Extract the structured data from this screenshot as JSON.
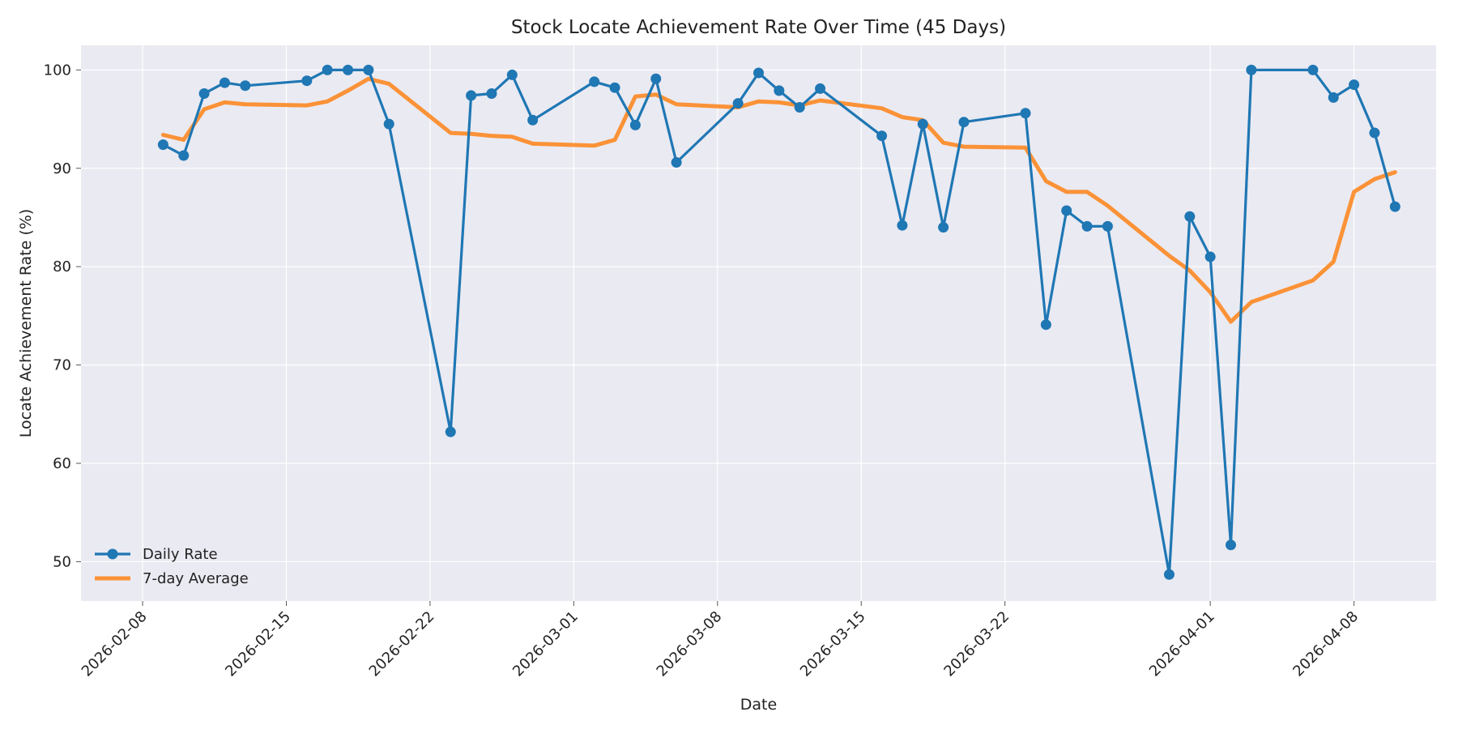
{
  "chart_data": {
    "type": "line",
    "title": "Stock Locate Achievement Rate Over Time (45 Days)",
    "xlabel": "Date",
    "ylabel": "Locate Achievement Rate (%)",
    "xlim": [
      "2026-02-05",
      "2026-04-12"
    ],
    "ylim": [
      46,
      102.5
    ],
    "x_ticks": [
      "2026-02-08",
      "2026-02-15",
      "2026-02-22",
      "2026-03-01",
      "2026-03-08",
      "2026-03-15",
      "2026-03-22",
      "2026-04-01",
      "2026-04-08"
    ],
    "y_ticks": [
      50,
      60,
      70,
      80,
      90,
      100
    ],
    "grid": true,
    "legend": "lower-left",
    "series": [
      {
        "name": "Daily Rate",
        "color": "#1f77b4",
        "marker": "circle",
        "x": [
          "2026-02-09",
          "2026-02-10",
          "2026-02-11",
          "2026-02-12",
          "2026-02-13",
          "2026-02-16",
          "2026-02-17",
          "2026-02-18",
          "2026-02-19",
          "2026-02-20",
          "2026-02-23",
          "2026-02-24",
          "2026-02-25",
          "2026-02-26",
          "2026-02-27",
          "2026-03-02",
          "2026-03-03",
          "2026-03-04",
          "2026-03-05",
          "2026-03-06",
          "2026-03-09",
          "2026-03-10",
          "2026-03-11",
          "2026-03-12",
          "2026-03-13",
          "2026-03-16",
          "2026-03-17",
          "2026-03-18",
          "2026-03-19",
          "2026-03-20",
          "2026-03-23",
          "2026-03-24",
          "2026-03-25",
          "2026-03-26",
          "2026-03-27",
          "2026-03-30",
          "2026-03-31",
          "2026-04-01",
          "2026-04-02",
          "2026-04-03",
          "2026-04-06",
          "2026-04-07",
          "2026-04-08",
          "2026-04-09",
          "2026-04-10"
        ],
        "values": [
          92.4,
          91.3,
          97.6,
          98.7,
          98.4,
          98.9,
          100,
          100,
          100,
          94.5,
          63.2,
          97.4,
          97.6,
          99.5,
          94.9,
          98.8,
          98.2,
          94.4,
          99.1,
          90.6,
          96.6,
          99.7,
          97.9,
          96.2,
          98.1,
          93.3,
          84.2,
          94.5,
          84.0,
          94.7,
          95.6,
          74.1,
          85.7,
          84.1,
          84.1,
          48.7,
          85.1,
          81.0,
          51.7,
          100,
          100,
          97.2,
          98.5,
          93.6,
          86.1
        ]
      },
      {
        "name": "7-day Average",
        "color": "#ff7f0e",
        "marker": "none",
        "x": [
          "2026-02-09",
          "2026-02-10",
          "2026-02-11",
          "2026-02-12",
          "2026-02-13",
          "2026-02-16",
          "2026-02-17",
          "2026-02-18",
          "2026-02-19",
          "2026-02-20",
          "2026-02-23",
          "2026-02-24",
          "2026-02-25",
          "2026-02-26",
          "2026-02-27",
          "2026-03-02",
          "2026-03-03",
          "2026-03-04",
          "2026-03-05",
          "2026-03-06",
          "2026-03-09",
          "2026-03-10",
          "2026-03-11",
          "2026-03-12",
          "2026-03-13",
          "2026-03-16",
          "2026-03-17",
          "2026-03-18",
          "2026-03-19",
          "2026-03-20",
          "2026-03-23",
          "2026-03-24",
          "2026-03-25",
          "2026-03-26",
          "2026-03-27",
          "2026-03-30",
          "2026-03-31",
          "2026-04-01",
          "2026-04-02",
          "2026-04-03",
          "2026-04-06",
          "2026-04-07",
          "2026-04-08",
          "2026-04-09",
          "2026-04-10"
        ],
        "values": [
          93.4,
          92.9,
          96.0,
          96.7,
          96.5,
          96.4,
          96.8,
          97.9,
          99.1,
          98.6,
          93.6,
          93.5,
          93.3,
          93.2,
          92.5,
          92.3,
          92.9,
          97.3,
          97.5,
          96.5,
          96.2,
          96.8,
          96.7,
          96.4,
          96.9,
          96.1,
          95.2,
          94.9,
          92.6,
          92.2,
          92.1,
          88.7,
          87.6,
          87.6,
          86.2,
          81.1,
          79.6,
          77.4,
          74.4,
          76.4,
          78.6,
          80.5,
          87.6,
          88.9,
          89.6
        ]
      }
    ]
  }
}
